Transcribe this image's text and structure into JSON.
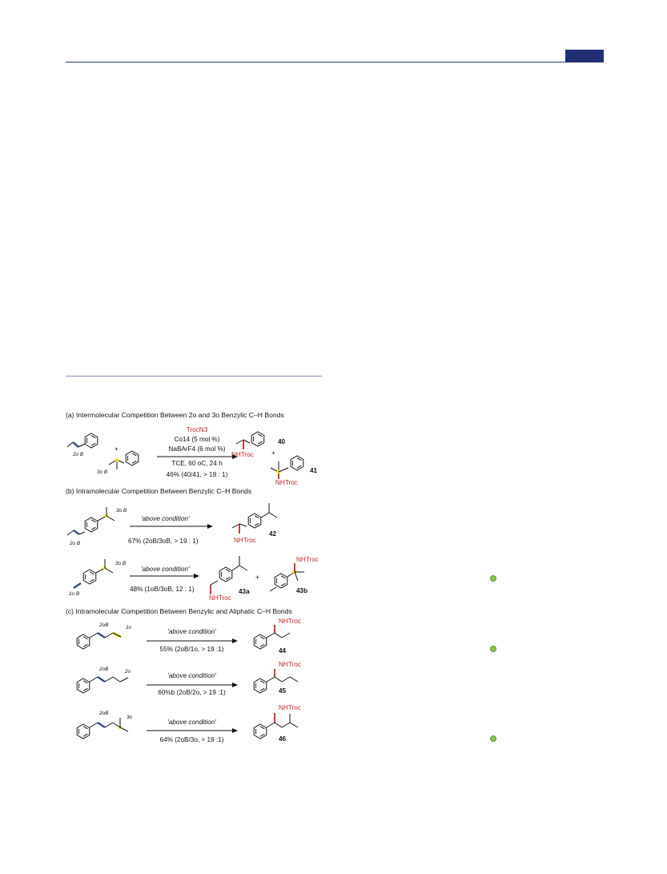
{
  "scheme": {
    "a": {
      "heading": "(a) Intermolecular Competition Between 2o and 3o Benzylic C–H Bonds",
      "reagent": "TrocN3",
      "catalyst": "Co14 (5 mol %)",
      "additive": "NaBArF4 (6 mol %)",
      "conditions": "TCE, 60 oC, 24 h",
      "yield": "46% (40/41, > 19 : 1)",
      "label_2b": "2o B",
      "label_3b": "3o B",
      "plus": "+",
      "nhtroc": "NHTroc",
      "cmpd_40": "40",
      "cmpd_41": "41"
    },
    "b": {
      "heading": "(b) Intramolecular Competition Between Benzylic C–H Bonds",
      "cond1": "'above condition'",
      "yield1": "67% (2oB/3oB, > 19 : 1)",
      "label_3b": "3o B",
      "label_2b": "2o B",
      "cmpd_42": "42",
      "cond2": "'above condition'",
      "yield2": "48% (1oB/3oB, 12 : 1)",
      "label_3b_2": "3o B",
      "label_1b": "1o B",
      "cmpd_43a": "43a",
      "cmpd_43b": "43b",
      "plus": "+",
      "nhtroc": "NHTroc"
    },
    "c": {
      "heading": "(c) Intramolecular Competition Between Benzylic and Aliphatic C–H Bonds",
      "row1": {
        "left_label": "2oB",
        "right_label": "1o",
        "cond": "'above condition'",
        "yield": "55% (2oB/1o, > 19 :1)",
        "nhtroc": "NHTroc",
        "cmpd": "44"
      },
      "row2": {
        "left_label": "2oB",
        "right_label": "2o",
        "cond": "'above condition'",
        "yield": "60%b (2oB/2o, > 19 :1)",
        "nhtroc": "NHTroc",
        "cmpd": "45"
      },
      "row3": {
        "left_label": "2oB",
        "right_label": "3o",
        "cond": "'above condition'",
        "yield": "64% (2oB/3o, > 19 :1)",
        "nhtroc": "NHTroc",
        "cmpd": "46"
      }
    }
  },
  "colors": {
    "header_rule": "#2b3a7a",
    "header_tab": "#232f75",
    "secondary_highlight": "#7f9be0",
    "tertiary_highlight": "#f2e21a",
    "nhtroc_bond": "#c1272d",
    "annotation_dot": "#8bc34a"
  }
}
